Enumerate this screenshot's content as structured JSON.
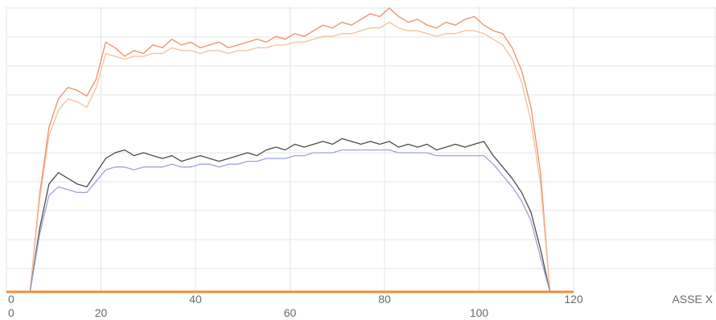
{
  "chart_data": {
    "type": "line",
    "title": "",
    "xlabel": "ASSE X",
    "ylabel": "",
    "xlim": [
      0,
      120
    ],
    "ylim": [
      0,
      100
    ],
    "grid": true,
    "x_ticks_upper": [
      "0",
      "40",
      "80",
      "120"
    ],
    "x_ticks_lower": [
      "0",
      "20",
      "60",
      "100"
    ],
    "series": [
      {
        "color": "#ef8e6c",
        "x": [
          5,
          7,
          9,
          11,
          13,
          15,
          17,
          19,
          21,
          23,
          25,
          27,
          29,
          31,
          33,
          35,
          37,
          39,
          41,
          43,
          45,
          47,
          49,
          51,
          53,
          55,
          57,
          59,
          61,
          63,
          65,
          67,
          69,
          71,
          73,
          75,
          77,
          79,
          81,
          83,
          85,
          87,
          89,
          91,
          93,
          95,
          97,
          99,
          101,
          103,
          105,
          107,
          109,
          111,
          113,
          115
        ],
        "y": [
          0,
          34,
          58,
          68,
          72,
          71,
          69,
          75,
          88,
          86,
          83,
          85,
          84,
          87,
          86,
          89,
          87,
          88,
          86,
          87,
          88,
          86,
          87,
          88,
          89,
          88,
          90,
          89,
          91,
          90,
          92,
          94,
          93,
          95,
          94,
          96,
          98,
          97,
          100,
          97,
          95,
          96,
          94,
          93,
          95,
          94,
          96,
          97,
          94,
          92,
          91,
          86,
          78,
          65,
          42,
          0
        ]
      },
      {
        "color": "#f4c09c",
        "x": [
          5,
          7,
          9,
          11,
          13,
          15,
          17,
          19,
          21,
          23,
          25,
          27,
          29,
          31,
          33,
          35,
          37,
          39,
          41,
          43,
          45,
          47,
          49,
          51,
          53,
          55,
          57,
          59,
          61,
          63,
          65,
          67,
          69,
          71,
          73,
          75,
          77,
          79,
          81,
          83,
          85,
          87,
          89,
          91,
          93,
          95,
          97,
          99,
          101,
          103,
          105,
          107,
          109,
          111,
          113,
          115
        ],
        "y": [
          0,
          32,
          55,
          64,
          68,
          67,
          65,
          72,
          84,
          83,
          82,
          83,
          83,
          84,
          84,
          86,
          85,
          85,
          84,
          85,
          85,
          84,
          85,
          85,
          86,
          86,
          87,
          87,
          88,
          88,
          89,
          90,
          90,
          91,
          91,
          92,
          93,
          93,
          95,
          93,
          92,
          92,
          91,
          90,
          91,
          91,
          92,
          92,
          91,
          89,
          87,
          82,
          74,
          60,
          38,
          0
        ]
      },
      {
        "color": "#4c4c4c",
        "x": [
          5,
          7,
          9,
          11,
          13,
          15,
          17,
          19,
          21,
          23,
          25,
          27,
          29,
          31,
          33,
          35,
          37,
          39,
          41,
          43,
          45,
          47,
          49,
          51,
          53,
          55,
          57,
          59,
          61,
          63,
          65,
          67,
          69,
          71,
          73,
          75,
          77,
          79,
          81,
          83,
          85,
          87,
          89,
          91,
          93,
          95,
          97,
          99,
          101,
          103,
          105,
          107,
          109,
          111,
          113,
          115
        ],
        "y": [
          0,
          22,
          38,
          42,
          40,
          38,
          37,
          42,
          47,
          49,
          50,
          48,
          49,
          48,
          47,
          48,
          46,
          47,
          48,
          47,
          46,
          47,
          48,
          49,
          48,
          50,
          51,
          50,
          52,
          51,
          52,
          53,
          52,
          54,
          53,
          52,
          53,
          52,
          53,
          51,
          52,
          51,
          52,
          50,
          51,
          52,
          51,
          52,
          53,
          48,
          44,
          40,
          35,
          28,
          15,
          0
        ]
      },
      {
        "color": "#9aa6d2",
        "x": [
          5,
          7,
          9,
          11,
          13,
          15,
          17,
          19,
          21,
          23,
          25,
          27,
          29,
          31,
          33,
          35,
          37,
          39,
          41,
          43,
          45,
          47,
          49,
          51,
          53,
          55,
          57,
          59,
          61,
          63,
          65,
          67,
          69,
          71,
          73,
          75,
          77,
          79,
          81,
          83,
          85,
          87,
          89,
          91,
          93,
          95,
          97,
          99,
          101,
          103,
          105,
          107,
          109,
          111,
          113,
          115
        ],
        "y": [
          0,
          20,
          34,
          37,
          36,
          35,
          35,
          39,
          43,
          44,
          44,
          43,
          44,
          44,
          44,
          45,
          44,
          44,
          45,
          45,
          44,
          45,
          45,
          46,
          46,
          47,
          47,
          47,
          48,
          48,
          49,
          49,
          49,
          50,
          50,
          50,
          50,
          50,
          50,
          49,
          49,
          49,
          49,
          48,
          48,
          48,
          48,
          48,
          48,
          45,
          41,
          37,
          32,
          25,
          12,
          0
        ]
      },
      {
        "color": "#ef8e3c",
        "x": [
          0,
          120
        ],
        "y": [
          0,
          0
        ]
      }
    ]
  }
}
